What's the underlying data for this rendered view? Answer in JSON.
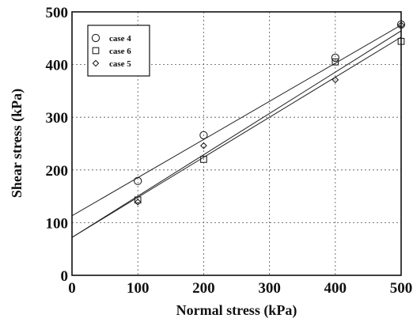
{
  "chart_data": {
    "type": "scatter",
    "xlabel": "Normal stress (kPa)",
    "ylabel": "Shear stress (kPa)",
    "xlim": [
      0,
      500
    ],
    "ylim": [
      0,
      500
    ],
    "xticks": [
      0,
      100,
      200,
      300,
      400,
      500
    ],
    "yticks": [
      0,
      100,
      200,
      300,
      400,
      500
    ],
    "grid": true,
    "legend_position": "top-left",
    "series": [
      {
        "name": "case 4",
        "marker": "circle",
        "x": [
          100,
          200,
          400,
          500
        ],
        "y": [
          179,
          266,
          413,
          476
        ],
        "fit": {
          "intercept": 113,
          "slope": 0.724
        }
      },
      {
        "name": "case 6",
        "marker": "square",
        "x": [
          100,
          200,
          400,
          500
        ],
        "y": [
          143,
          220,
          405,
          444
        ],
        "fit": {
          "intercept": 72,
          "slope": 0.76
        }
      },
      {
        "name": "case 5",
        "marker": "diamond",
        "x": [
          100,
          200,
          400,
          500
        ],
        "y": [
          139,
          246,
          371,
          475
        ],
        "fit": {
          "intercept": 72,
          "slope": 0.784
        }
      }
    ]
  }
}
